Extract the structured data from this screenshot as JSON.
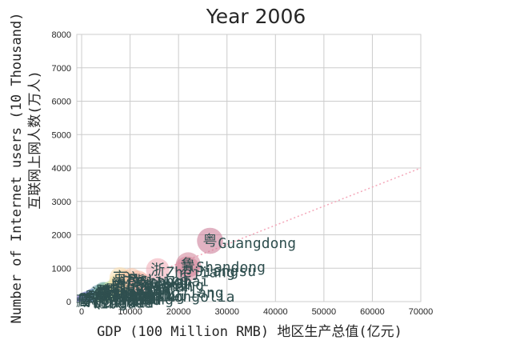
{
  "chart_data": {
    "type": "scatter",
    "title": "Year 2006",
    "xlabel": "GDP (100 Million RMB) 地区生产总值(亿元)",
    "ylabel_line1": "Number of Internet users (10 Thousand)",
    "ylabel_line2": "互联网上网人数(万人)",
    "xlim": [
      -1000,
      70000
    ],
    "ylim": [
      0,
      8000
    ],
    "x_ticks": [
      "0",
      "10000",
      "20000",
      "30000",
      "40000",
      "50000",
      "60000",
      "70000"
    ],
    "y_ticks": [
      "0",
      "1000",
      "2000",
      "3000",
      "4000",
      "5000",
      "6000",
      "7000",
      "8000"
    ],
    "grid": true,
    "trend_line": {
      "from": [
        0,
        0
      ],
      "to": [
        70000,
        4000
      ],
      "style": "dotted",
      "color": "#f4a7b9"
    },
    "points": [
      {
        "abbr": "粤",
        "label": "Guangdong",
        "x": 26500,
        "y": 1820,
        "color": "#c9738f"
      },
      {
        "abbr": "鲁",
        "label": "Shandong",
        "x": 22000,
        "y": 1100,
        "color": "#d07f96"
      },
      {
        "abbr": "苏",
        "label": "Jiangsu",
        "x": 21800,
        "y": 980,
        "color": "#d98ba0"
      },
      {
        "abbr": "浙",
        "label": "Zhejiang",
        "x": 15700,
        "y": 950,
        "color": "#f0a8b2"
      },
      {
        "abbr": "豫",
        "label": "Henan",
        "x": 12400,
        "y": 520,
        "color": "#f5b1a8"
      },
      {
        "abbr": "冀",
        "label": "Hebei",
        "x": 11600,
        "y": 600,
        "color": "#f7b9a5"
      },
      {
        "abbr": "沪",
        "label": "Shanghai",
        "x": 10300,
        "y": 680,
        "color": "#f8c2a4"
      },
      {
        "abbr": "辽",
        "label": "Liaoning",
        "x": 9300,
        "y": 560,
        "color": "#f9cba4"
      },
      {
        "abbr": "川",
        "label": "Sichuan",
        "x": 8700,
        "y": 650,
        "color": "#fad4a6"
      },
      {
        "abbr": "京",
        "label": "Beijing",
        "x": 7900,
        "y": 720,
        "color": "#fbdcaa"
      },
      {
        "abbr": "湘",
        "label": "Hunan",
        "x": 7700,
        "y": 420,
        "color": "#f9e2ab"
      },
      {
        "abbr": "鄂",
        "label": "Hubei",
        "x": 7600,
        "y": 470,
        "color": "#f3e6ad"
      },
      {
        "abbr": "闽",
        "label": "Fujian",
        "x": 7600,
        "y": 530,
        "color": "#e8e8ae"
      },
      {
        "abbr": "皖",
        "label": "Anhui",
        "x": 6200,
        "y": 320,
        "color": "#d9e5ad"
      },
      {
        "abbr": "蒙",
        "label": "Inner Mongolia",
        "x": 4900,
        "y": 210,
        "color": "#c8dfab"
      },
      {
        "abbr": "黑",
        "label": "Heilongjiang",
        "x": 6200,
        "y": 330,
        "color": "#b7d8a9"
      },
      {
        "abbr": "桂",
        "label": "Guangxi",
        "x": 4800,
        "y": 280,
        "color": "#a6d0a8"
      },
      {
        "abbr": "津",
        "label": "Tianjin",
        "x": 4400,
        "y": 250,
        "color": "#98c8a8"
      },
      {
        "abbr": "赣",
        "label": "Jiangxi",
        "x": 4700,
        "y": 240,
        "color": "#8cc0a9"
      },
      {
        "abbr": "晋",
        "label": "Shanxi",
        "x": 4800,
        "y": 290,
        "color": "#83b8ab"
      },
      {
        "abbr": "陕",
        "label": "Shaanxi",
        "x": 4500,
        "y": 300,
        "color": "#7cb0ad"
      },
      {
        "abbr": "吉",
        "label": "Jilin",
        "x": 4300,
        "y": 230,
        "color": "#77a8b0"
      },
      {
        "abbr": "渝",
        "label": "Chongqing",
        "x": 3500,
        "y": 230,
        "color": "#74a0b3"
      },
      {
        "abbr": "云",
        "label": "Yunnan",
        "x": 4000,
        "y": 200,
        "color": "#7399b6"
      },
      {
        "abbr": "新",
        "label": "Xinjiang",
        "x": 3000,
        "y": 130,
        "color": "#7393b8"
      },
      {
        "abbr": "黔",
        "label": "Guizhou",
        "x": 2300,
        "y": 120,
        "color": "#758dbb"
      },
      {
        "abbr": "甘",
        "label": "Gansu",
        "x": 2300,
        "y": 120,
        "color": "#7888bd"
      },
      {
        "abbr": "琼",
        "label": "Hainan",
        "x": 1100,
        "y": 60,
        "color": "#7c84be"
      },
      {
        "abbr": "宁",
        "label": "Ningxia",
        "x": 700,
        "y": 40,
        "color": "#8181bf"
      },
      {
        "abbr": "青",
        "label": "Qinghai",
        "x": 640,
        "y": 30,
        "color": "#867ebf"
      },
      {
        "abbr": "藏",
        "label": "Tibet",
        "x": 290,
        "y": 10,
        "color": "#8b7bbf"
      }
    ]
  }
}
